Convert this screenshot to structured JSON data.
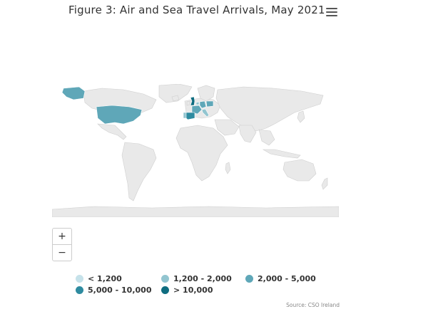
{
  "title": "Figure 3: Air and Sea Travel Arrivals, May 2021",
  "menu_icon": "hamburger-menu-icon",
  "zoom": {
    "in_label": "+",
    "out_label": "−"
  },
  "legend": [
    {
      "label": "< 1,200",
      "color": "#c6e2ea"
    },
    {
      "label": "1,200 - 2,000",
      "color": "#92c5d0"
    },
    {
      "label": "2,000 - 5,000",
      "color": "#5fa7b8"
    },
    {
      "label": "5,000 - 10,000",
      "color": "#2e8ba0"
    },
    {
      "label": "> 10,000",
      "color": "#0f6d80"
    }
  ],
  "source": "Source: CSO Ireland",
  "map_data": {
    "base_color": "#e9e9e9",
    "border_color": "#ffffff",
    "highlighted": [
      {
        "region": "United States",
        "bin": "2,000 - 5,000"
      },
      {
        "region": "United Kingdom",
        "bin": "> 10,000"
      },
      {
        "region": "Spain",
        "bin": "5,000 - 10,000"
      },
      {
        "region": "France",
        "bin": "2,000 - 5,000"
      },
      {
        "region": "Germany",
        "bin": "2,000 - 5,000"
      },
      {
        "region": "Poland",
        "bin": "2,000 - 5,000"
      },
      {
        "region": "Italy",
        "bin": "1,200 - 2,000"
      },
      {
        "region": "Netherlands",
        "bin": "1,200 - 2,000"
      },
      {
        "region": "Portugal",
        "bin": "1,200 - 2,000"
      }
    ]
  }
}
